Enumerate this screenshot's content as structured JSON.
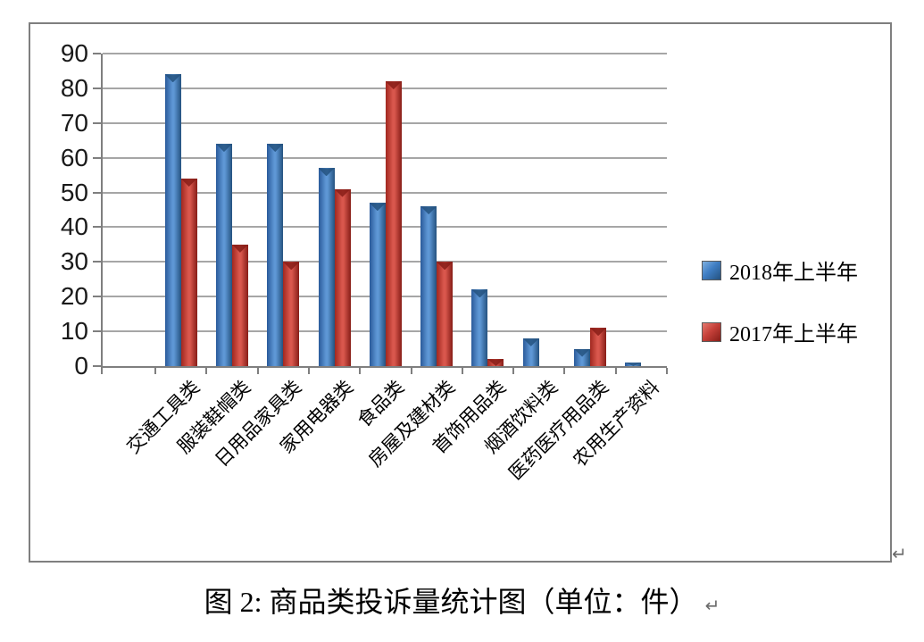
{
  "figure": {
    "caption": "图 2: 商品类投诉量统计图（单位：件）",
    "return_mark": "↵"
  },
  "chart_data": {
    "type": "bar",
    "title": "",
    "xlabel": "",
    "ylabel": "",
    "categories": [
      "交通工具类",
      "服装鞋帽类",
      "日用品家具类",
      "家用电器类",
      "食品类",
      "房屋及建材类",
      "首饰用品类",
      "烟酒饮料类",
      "医药医疗用品类",
      "农用生产资料"
    ],
    "series": [
      {
        "name": "2018年上半年",
        "values": [
          84,
          64,
          64,
          57,
          47,
          46,
          22,
          8,
          5,
          1
        ],
        "color": "#3f7ec4",
        "color_light": "#5e97d5",
        "color_dark": "#2a5a9a",
        "color_edge": "#24527f"
      },
      {
        "name": "2017年上半年",
        "values": [
          54,
          35,
          30,
          51,
          82,
          30,
          2,
          0,
          11,
          0
        ],
        "color": "#c6413a",
        "color_light": "#d9574d",
        "color_dark": "#a1281f",
        "color_edge": "#871d17"
      }
    ],
    "ylim": [
      0,
      90
    ],
    "yticks": [
      0,
      10,
      20,
      30,
      40,
      50,
      60,
      70,
      80,
      90
    ],
    "grid": true,
    "gridline_color": "#a6a6a6",
    "axis_color": "#7f7f7f",
    "legend_position": "right"
  }
}
